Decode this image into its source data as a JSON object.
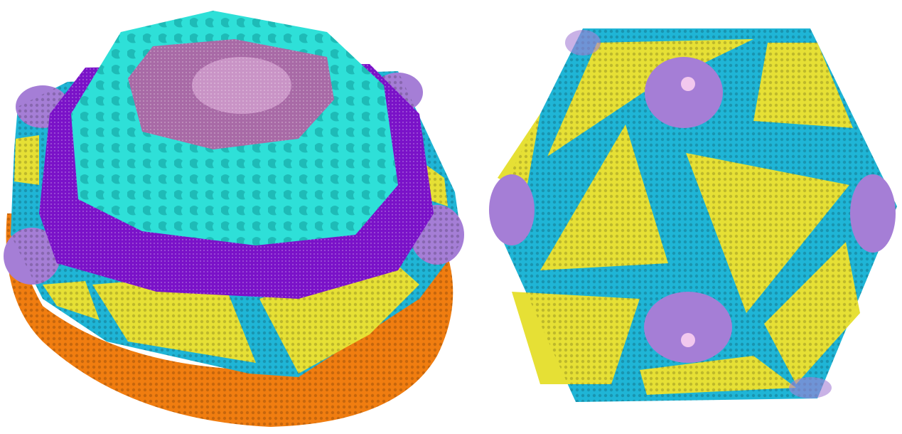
{
  "figure": {
    "panels": [
      {
        "id": "cutaway-view",
        "layers": [
          "outer-membrane",
          "capsid-shell",
          "inner-membrane",
          "core-shell",
          "genome"
        ]
      },
      {
        "id": "exterior-view",
        "layers": [
          "capsid-facets",
          "capsid-edges",
          "pentamers"
        ]
      }
    ],
    "colors": {
      "background": "#ffffff",
      "outer_membrane": "#f07d10",
      "capsid_facet": "#e6e035",
      "capsid_edge": "#1fb5d6",
      "pentamer": "#a57ed6",
      "inner_membrane": "#7a12c8",
      "core_shell": "#2ee0d8",
      "genome": "#a86aa6",
      "genome_highlight": "#f2c8ee"
    }
  }
}
